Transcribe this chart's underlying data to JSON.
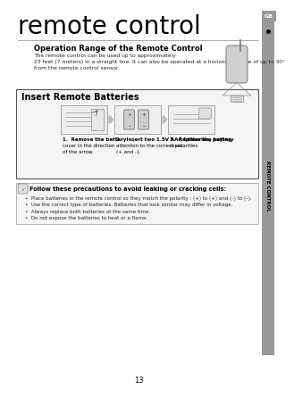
{
  "title": "remote control",
  "bg_color": "#ffffff",
  "page_num": "13",
  "tab_label": "GB",
  "sidebar_label": "REMOTE CONTROL",
  "section1_title": "Operation Range of the Remote Control",
  "section1_line1": "The remote control can be used up to approximately",
  "section1_line2": "23 feet (7 meters) in a straight line. It can also be operated at a horizontal angle of up to 30°",
  "section1_line3": "from the remote control sensor.",
  "section2_title": "Insert Remote Batteries",
  "step1_bold": "1.  Remove the battery",
  "step1_rest": [
    "cover in the direction",
    "of the arrow."
  ],
  "step2_bold": "2.   Insert two 1.5V AAA batteries, paying",
  "step2_rest": [
    "attention to the correct polarities",
    "(+ and –)."
  ],
  "step3_bold": "3.  Replace the battery",
  "step3_rest": [
    "cover."
  ],
  "note_title": "Follow these precautions to avoid leaking or cracking cells:",
  "note_bullets": [
    "Place batteries in the remote control so they match the polarity : (+) to (+) and (–) to (–).",
    "Use the correct type of batteries. Batteries that look similar may differ in voltage.",
    "Always replace both batteries at the same time.",
    "Do not expose the batteries to heat or a flame."
  ],
  "sidebar_color": "#999999",
  "sidebar_text_color": "#000000",
  "tab_color": "#999999",
  "border_color": "#555555",
  "title_underline_color": "#aaaaaa"
}
